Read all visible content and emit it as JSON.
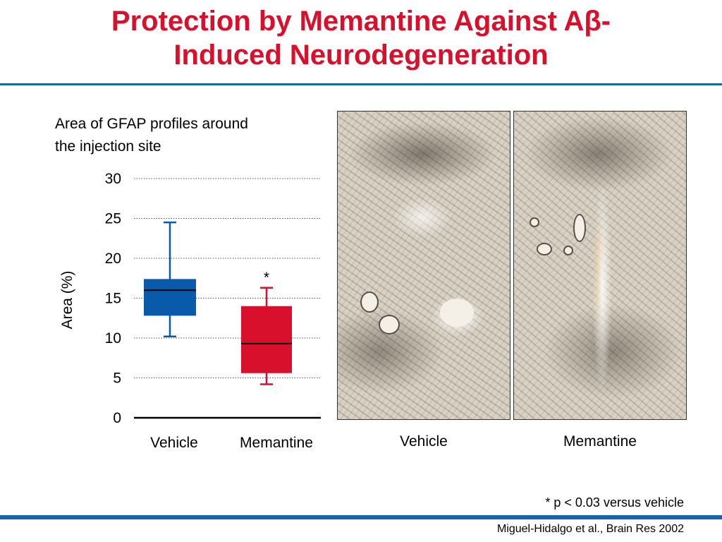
{
  "slide": {
    "title_line1": "Protection by Memantine Against Aβ-",
    "title_line2": "Induced Neurodegeneration",
    "chart_caption_line1": "Area of GFAP profiles around",
    "chart_caption_line2": "the injection site",
    "micro_labels": [
      "Vehicle",
      "Memantine"
    ],
    "footnote": "* p < 0.03 versus vehicle",
    "citation": "Miguel-Hidalgo et al., Brain Res 2002"
  },
  "colors": {
    "title": "#d8102c",
    "accent_rule": "#1565b0",
    "vehicle_box": "#0a5aab",
    "memantine_box": "#d8102c"
  },
  "chart_data": {
    "type": "box",
    "ylabel": "Area (%)",
    "ylim": [
      0,
      30
    ],
    "yticks": [
      0,
      5,
      10,
      15,
      20,
      25,
      30
    ],
    "grid": "dotted horizontal",
    "categories": [
      "Vehicle",
      "Memantine"
    ],
    "boxes": [
      {
        "category": "Vehicle",
        "min": 10.2,
        "q1": 12.8,
        "median": 16.0,
        "q3": 17.4,
        "max": 24.5,
        "color": "#0a5aab",
        "annotation": ""
      },
      {
        "category": "Memantine",
        "min": 4.2,
        "q1": 5.6,
        "median": 9.3,
        "q3": 14.0,
        "max": 16.3,
        "color": "#d8102c",
        "annotation": "*"
      }
    ]
  }
}
